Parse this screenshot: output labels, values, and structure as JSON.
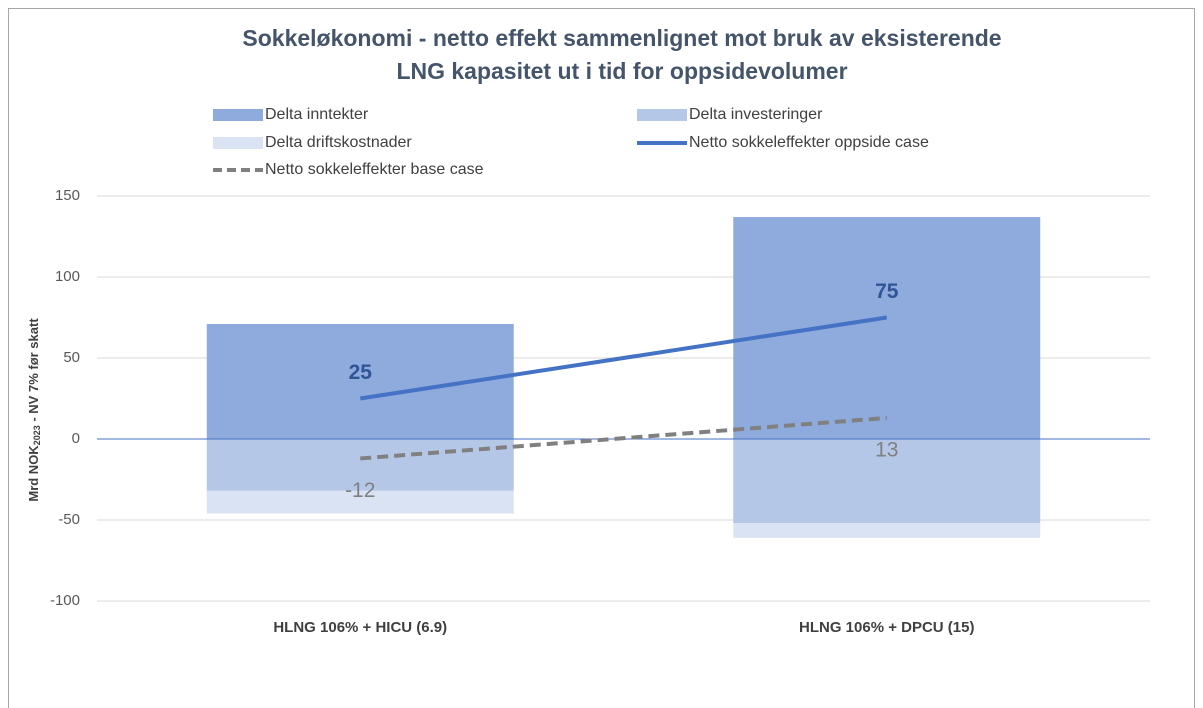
{
  "chart_data": {
    "type": "bar",
    "title": [
      "Sokkeløkonomi - netto effekt sammenlignet mot bruk av eksisterende",
      "LNG kapasitet ut i tid for oppsidevolumer"
    ],
    "ylabel": [
      "Mrd NOK",
      "2023",
      " - NV 7% før skatt"
    ],
    "categories": [
      "HLNG 106% + HICU (6.9)",
      "HLNG 106% + DPCU (15)"
    ],
    "series": [
      {
        "name": "Delta inntekter",
        "color": "#8faadc",
        "values": [
          71,
          137
        ]
      },
      {
        "name": "Delta investeringer",
        "color": "#b4c7e7",
        "values": [
          -32,
          -52
        ]
      },
      {
        "name": "Delta driftskostnader",
        "color": "#dae3f3",
        "values": [
          -14,
          -9
        ]
      }
    ],
    "lines": [
      {
        "name": "Netto sokkeleffekter oppside case",
        "color": "#4472c4",
        "dashed": false,
        "values": [
          25,
          75
        ]
      },
      {
        "name": "Netto sokkeleffekter base case",
        "color": "#808080",
        "dashed": true,
        "values": [
          -12,
          13
        ]
      }
    ],
    "ylim": [
      -100,
      150
    ],
    "yticks": [
      -100,
      -50,
      0,
      50,
      100,
      150
    ],
    "grid": true
  }
}
